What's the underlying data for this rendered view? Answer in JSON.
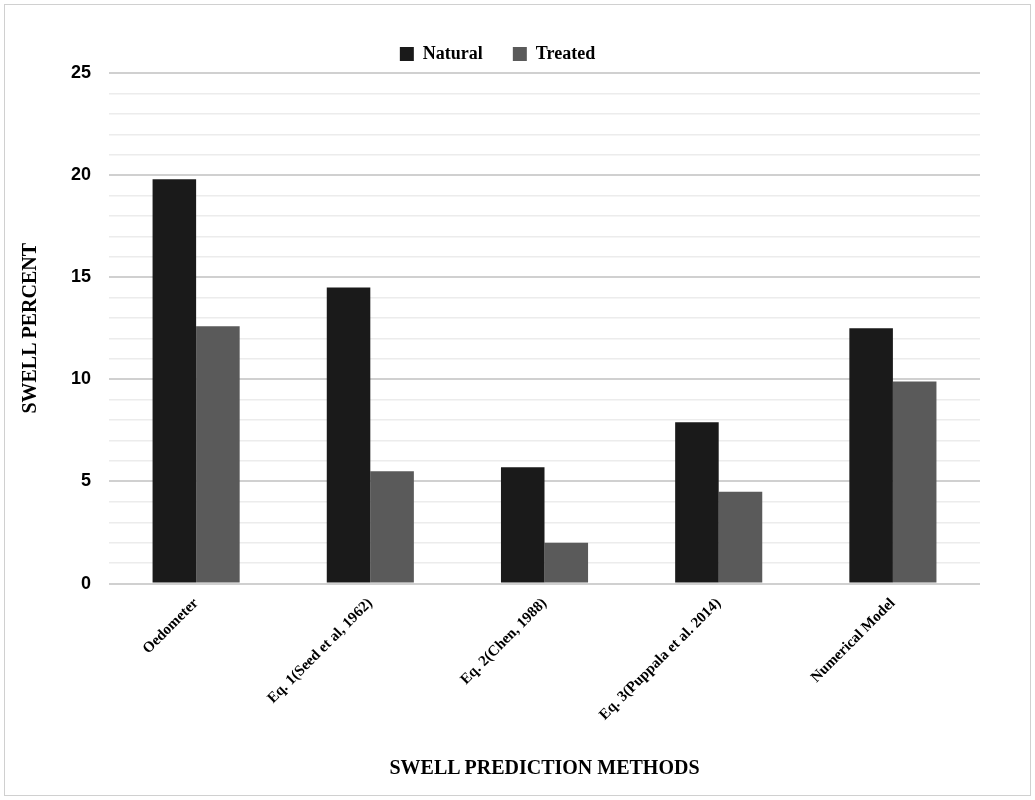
{
  "chart_data": {
    "type": "bar",
    "xlabel": "SWELL PREDICTION METHODS",
    "ylabel": "SWELL PERCENT",
    "categories": [
      "Oedometer",
      "Eq. 1(Seed et al, 1962)",
      "Eq. 2(Chen, 1988)",
      "Eq. 3(Puppala et al. 2014)",
      "Numerical Model"
    ],
    "series": [
      {
        "name": "Natural",
        "color": "#1a1a1a",
        "values": [
          19.8,
          14.5,
          5.7,
          7.9,
          12.5
        ]
      },
      {
        "name": "Treated",
        "color": "#5a5a5a",
        "values": [
          12.6,
          5.5,
          2.0,
          4.5,
          9.9
        ]
      }
    ],
    "ylim": [
      0,
      25
    ],
    "yticks": [
      0,
      {
        "value": 1,
        "label": null
      },
      {
        "value": 2,
        "label": null
      },
      {
        "value": 3,
        "label": null
      },
      {
        "value": 4,
        "label": null
      },
      5,
      {
        "value": 6,
        "label": null
      },
      {
        "value": 7,
        "label": null
      },
      {
        "value": 8,
        "label": null
      },
      {
        "value": 9,
        "label": null
      },
      10,
      {
        "value": 11,
        "label": null
      },
      {
        "value": 12,
        "label": null
      },
      {
        "value": 13,
        "label": null
      },
      {
        "value": 14,
        "label": null
      },
      15,
      {
        "value": 16,
        "label": null
      },
      {
        "value": 17,
        "label": null
      },
      {
        "value": 18,
        "label": null
      },
      {
        "value": 19,
        "label": null
      },
      20,
      {
        "value": 21,
        "label": null
      },
      {
        "value": 22,
        "label": null
      },
      {
        "value": 23,
        "label": null
      },
      {
        "value": 24,
        "label": null
      },
      25
    ],
    "grid": "y",
    "legend": "top"
  }
}
